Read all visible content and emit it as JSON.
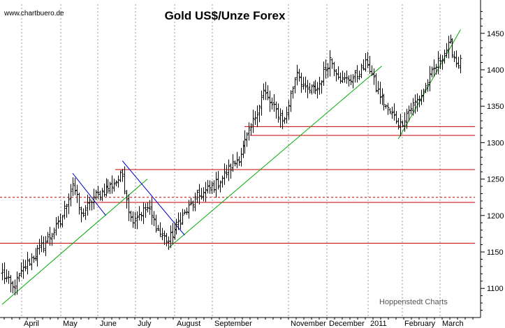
{
  "chart_data": {
    "type": "candlestick",
    "title": "Gold US$/Unze Forex",
    "source": "www.chartbuero.de",
    "credit": "Hoppenstedt Charts",
    "y_axis": {
      "position": "right",
      "ylim": [
        1060,
        1490
      ],
      "ticks": [
        1100,
        1150,
        1200,
        1250,
        1300,
        1350,
        1400,
        1450
      ],
      "tick_labels": [
        "1100",
        "1150",
        "1200",
        "1250",
        "1300",
        "1350",
        "1400",
        "1450"
      ]
    },
    "x_axis": {
      "tick_labels": [
        "April",
        "May",
        "June",
        "July",
        "August",
        "September",
        "November",
        "December",
        "2011",
        "February",
        "March"
      ],
      "grid": "dotted-vertical"
    },
    "price_anchors": [
      {
        "idx": 0,
        "v": 1120
      },
      {
        "idx": 5,
        "v": 1100
      },
      {
        "idx": 12,
        "v": 1135
      },
      {
        "idx": 20,
        "v": 1160
      },
      {
        "idx": 28,
        "v": 1190
      },
      {
        "idx": 34,
        "v": 1245
      },
      {
        "idx": 38,
        "v": 1200
      },
      {
        "idx": 44,
        "v": 1225
      },
      {
        "idx": 52,
        "v": 1240
      },
      {
        "idx": 58,
        "v": 1255
      },
      {
        "idx": 62,
        "v": 1195
      },
      {
        "idx": 70,
        "v": 1210
      },
      {
        "idx": 76,
        "v": 1175
      },
      {
        "idx": 80,
        "v": 1165
      },
      {
        "idx": 86,
        "v": 1195
      },
      {
        "idx": 94,
        "v": 1225
      },
      {
        "idx": 104,
        "v": 1245
      },
      {
        "idx": 114,
        "v": 1280
      },
      {
        "idx": 120,
        "v": 1320
      },
      {
        "idx": 126,
        "v": 1370
      },
      {
        "idx": 130,
        "v": 1350
      },
      {
        "idx": 136,
        "v": 1330
      },
      {
        "idx": 142,
        "v": 1400
      },
      {
        "idx": 146,
        "v": 1370
      },
      {
        "idx": 152,
        "v": 1375
      },
      {
        "idx": 158,
        "v": 1415
      },
      {
        "idx": 164,
        "v": 1385
      },
      {
        "idx": 170,
        "v": 1390
      },
      {
        "idx": 176,
        "v": 1410
      },
      {
        "idx": 180,
        "v": 1375
      },
      {
        "idx": 186,
        "v": 1345
      },
      {
        "idx": 192,
        "v": 1325
      },
      {
        "idx": 196,
        "v": 1345
      },
      {
        "idx": 202,
        "v": 1365
      },
      {
        "idx": 208,
        "v": 1400
      },
      {
        "idx": 212,
        "v": 1420
      },
      {
        "idx": 216,
        "v": 1435
      },
      {
        "idx": 219,
        "v": 1410
      }
    ],
    "horizontal_levels": [
      {
        "value": 1162,
        "color": "#cc0000",
        "style": "solid"
      },
      {
        "value": 1218,
        "color": "#cc0000",
        "style": "solid"
      },
      {
        "value": 1225,
        "color": "#cc0000",
        "style": "dashed"
      },
      {
        "value": 1263,
        "color": "#cc0000",
        "style": "solid"
      },
      {
        "value": 1310,
        "color": "#cc0000",
        "style": "solid"
      },
      {
        "value": 1322,
        "color": "#cc0000",
        "style": "solid"
      }
    ],
    "trendlines": [
      {
        "color": "#00aa00",
        "from": {
          "idx": 0,
          "v": 1078
        },
        "to": {
          "idx": 70,
          "v": 1250
        }
      },
      {
        "color": "#00aa00",
        "from": {
          "idx": 80,
          "v": 1155
        },
        "to": {
          "idx": 183,
          "v": 1405
        }
      },
      {
        "color": "#00aa00",
        "from": {
          "idx": 191,
          "v": 1305
        },
        "to": {
          "idx": 221,
          "v": 1455
        }
      },
      {
        "color": "#0000cc",
        "from": {
          "idx": 34,
          "v": 1258
        },
        "to": {
          "idx": 50,
          "v": 1200
        }
      },
      {
        "color": "#0000cc",
        "from": {
          "idx": 58,
          "v": 1275
        },
        "to": {
          "idx": 88,
          "v": 1173
        }
      }
    ],
    "grid": true,
    "legend": "none"
  }
}
